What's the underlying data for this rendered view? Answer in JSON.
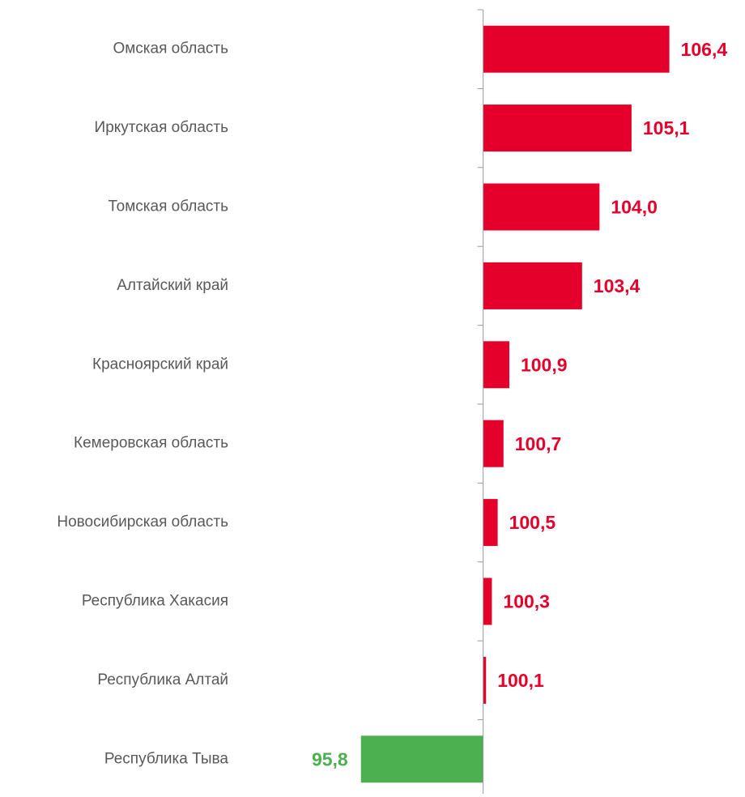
{
  "chart_data": {
    "type": "hbar",
    "categories": [
      "Омская область",
      "Иркутская область",
      "Томская область",
      "Алтайский край",
      "Красноярский край",
      "Кемеровская область",
      "Новосибирская область",
      "Республика Хакасия",
      "Республика Алтай",
      "Республика Тыва"
    ],
    "values": [
      106.4,
      105.1,
      104.0,
      103.4,
      100.9,
      100.7,
      100.5,
      100.3,
      100.1,
      95.8
    ],
    "value_labels": [
      "106,4",
      "105,1",
      "104,0",
      "103,4",
      "100,9",
      "100,7",
      "100,5",
      "100,3",
      "100,1",
      "95,8"
    ],
    "baseline": 100,
    "xlim": [
      91.8,
      109
    ],
    "color_above": "#e4002b",
    "color_below": "#4caf50"
  }
}
